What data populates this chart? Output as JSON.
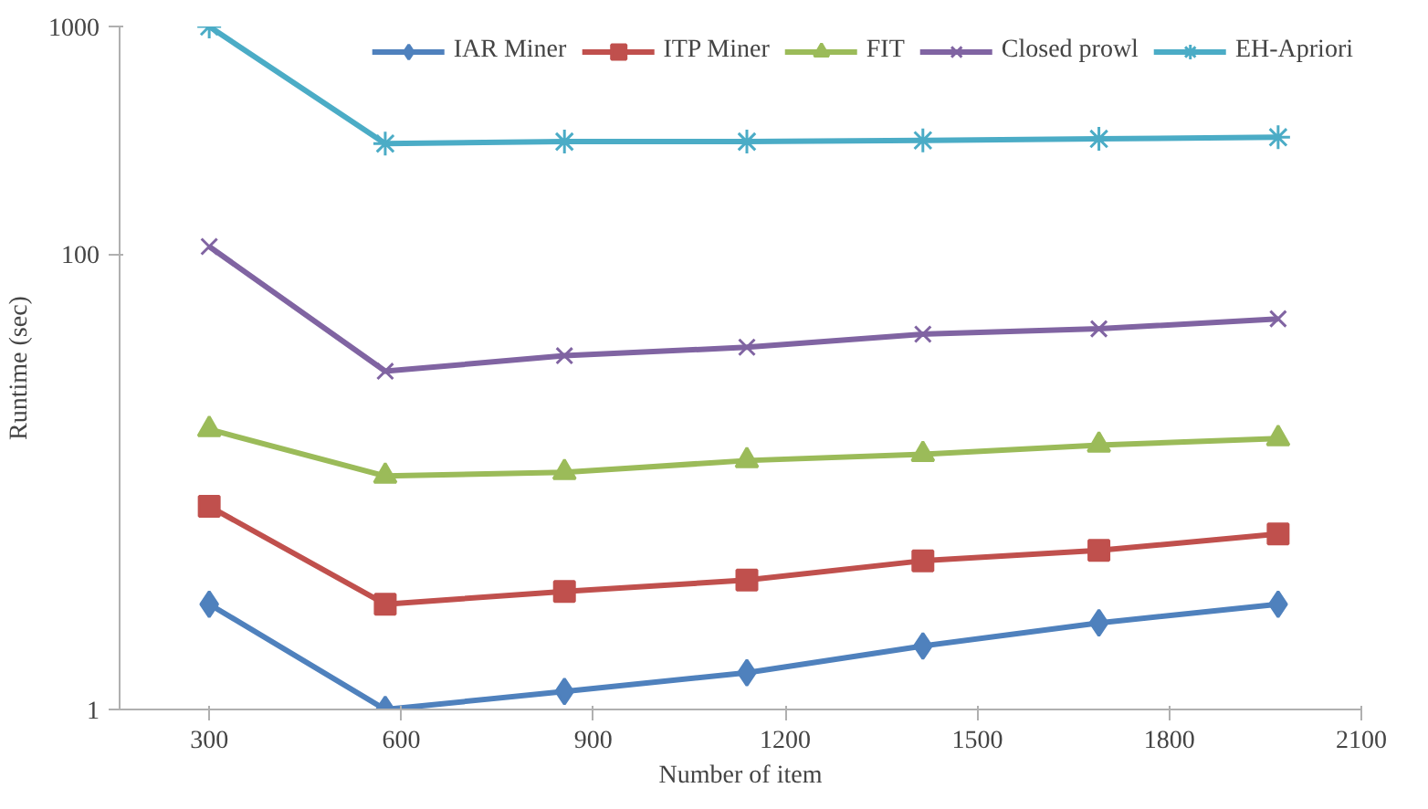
{
  "chart_data": {
    "type": "line",
    "xlabel": "Number of item",
    "ylabel": "Runtime (sec)",
    "log": "y",
    "grid": false,
    "legend": "top right",
    "x": [
      300,
      575,
      855,
      1140,
      1415,
      1690,
      1970
    ],
    "xlim": [
      160,
      2100
    ],
    "xticks": [
      300,
      600,
      900,
      1200,
      1500,
      1800,
      2100
    ],
    "ylim": [
      1,
      1000
    ],
    "yticks": [
      1,
      100,
      1000
    ],
    "series": [
      {
        "name": "IAR Miner",
        "color": "#4f81bd",
        "marker": "diamond",
        "values": [
          2.9,
          1,
          1.2,
          1.45,
          1.9,
          2.4,
          2.9
        ]
      },
      {
        "name": "ITP Miner",
        "color": "#c0504d",
        "marker": "square",
        "values": [
          7.8,
          2.9,
          3.3,
          3.7,
          4.5,
          5,
          5.9
        ]
      },
      {
        "name": "FIT",
        "color": "#9bbb59",
        "marker": "triangle",
        "values": [
          17,
          10.6,
          11,
          12.4,
          13.2,
          14.5,
          15.5
        ]
      },
      {
        "name": "Closed prowl",
        "color": "#8064a2",
        "marker": "x",
        "values": [
          108,
          30.6,
          35.8,
          39,
          44.5,
          47,
          52
        ]
      },
      {
        "name": "EH-Apriori",
        "color": "#4bacc6",
        "marker": "cross",
        "values": [
          1000,
          306,
          312,
          312,
          316,
          321,
          326
        ]
      }
    ]
  }
}
